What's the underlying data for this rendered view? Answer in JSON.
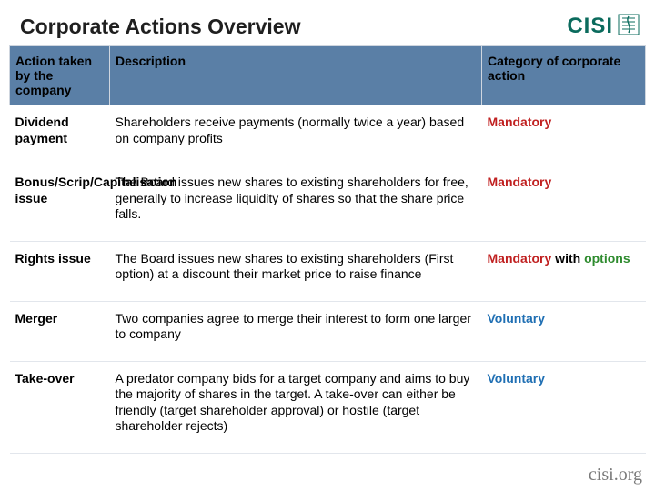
{
  "title": "Corporate Actions Overview",
  "logo": {
    "text": "CISI",
    "color": "#0b6b5d"
  },
  "footer": "cisi.org",
  "colors": {
    "header_bg": "#5a7fa6",
    "mandatory": "#c02020",
    "options": "#2e8b2e",
    "voluntary": "#1f6fb3",
    "border": "#cfd6df"
  },
  "table": {
    "columns": [
      "Action taken by the company",
      "Description",
      "Category of corporate action"
    ],
    "rows": [
      {
        "action": "Dividend payment",
        "description": "Shareholders receive payments (normally twice a year) based on company profits",
        "category_parts": [
          {
            "text": "Mandatory",
            "cls": "cat-mandatory"
          }
        ]
      },
      {
        "action": "Bonus/Scrip/Capitalisation issue",
        "description": "The Board issues new shares to existing shareholders for free, generally to increase liquidity of shares so that the share price  falls.",
        "category_parts": [
          {
            "text": "Mandatory",
            "cls": "cat-mandatory"
          }
        ]
      },
      {
        "action": "Rights issue",
        "description": "The Board issues new shares to existing shareholders (First option) at a discount their market price to raise finance",
        "category_parts": [
          {
            "text": "Mandatory",
            "cls": "cat-mandatory"
          },
          {
            "text": " with ",
            "cls": "cat-plain"
          },
          {
            "text": "options",
            "cls": "cat-options"
          }
        ]
      },
      {
        "action": "Merger",
        "description": "Two companies agree to merge their interest to form one larger to company",
        "category_parts": [
          {
            "text": "Voluntary",
            "cls": "cat-voluntary"
          }
        ]
      },
      {
        "action": "Take-over",
        "description": "A predator company bids for a target company and aims to buy the majority of shares in the target.  A take-over can either be friendly (target shareholder approval) or hostile (target shareholder rejects)",
        "category_parts": [
          {
            "text": "Voluntary",
            "cls": "cat-voluntary"
          }
        ]
      }
    ]
  }
}
